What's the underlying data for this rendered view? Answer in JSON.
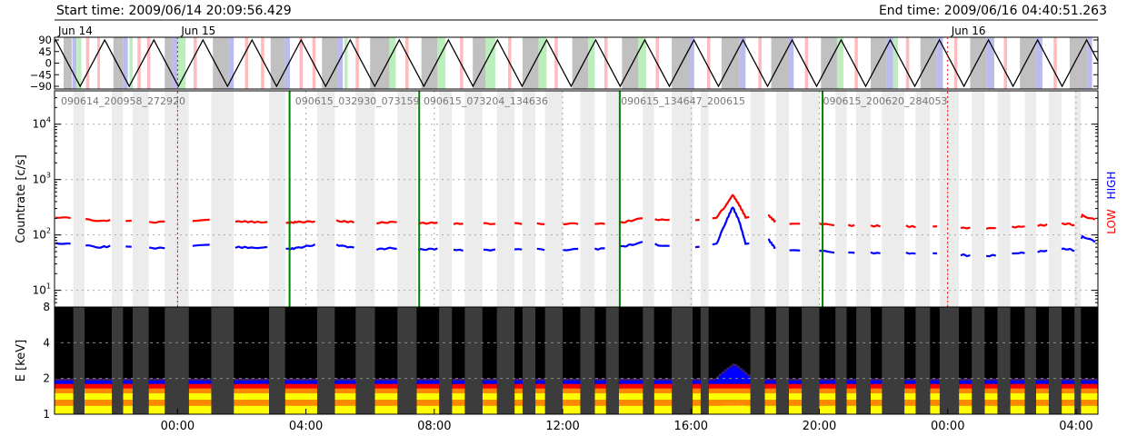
{
  "header": {
    "start_time": "Start time: 2009/06/14 20:09:56.429",
    "end_time": "End time: 2009/06/16 04:40:51.263"
  },
  "colors": {
    "low": "#ff0000",
    "high": "#0000ff",
    "marker": "#008000",
    "day_line": "#ff0000",
    "saa": "#c0c0c0",
    "gap_band": "#ececec",
    "dark_band": "#3c3c3c",
    "pink": "#ffbbbb",
    "lavender": "#bbbbee",
    "mint": "#bbeebb"
  },
  "chart_data": [
    {
      "type": "line",
      "panel": "orbit",
      "day_labels": [
        "Jun 14",
        "Jun 15",
        "Jun 16"
      ],
      "y_ticks": [
        "90",
        "45",
        "0",
        "−45",
        "−90"
      ],
      "ylim": [
        -90,
        90
      ],
      "x_unit": "hours since 2009/06/14 00:00",
      "xlim": [
        20.1656,
        52.6808
      ],
      "day_boundaries": [
        24,
        48
      ],
      "wave_period_h": 1.53,
      "wave_first_peak_h": 20.2,
      "grid": false
    },
    {
      "type": "line",
      "panel": "countrate",
      "ylabel": "Countrate [c/s]",
      "yscale": "log",
      "ylim": [
        5,
        40000
      ],
      "y_ticks": [
        {
          "base": "10",
          "exp": "1",
          "v": 10
        },
        {
          "base": "10",
          "exp": "2",
          "v": 100
        },
        {
          "base": "10",
          "exp": "3",
          "v": 1000
        },
        {
          "base": "10",
          "exp": "4",
          "v": 10000
        }
      ],
      "legend_low": "LOW",
      "legend_high": "HIGH",
      "legend_position": "right",
      "grid": true,
      "segment_labels": [
        {
          "text": "090614_200958_272920",
          "x": 20.25
        },
        {
          "text": "090615_032930_073159",
          "x": 27.55
        },
        {
          "text": "090615_073204_134636",
          "x": 31.55
        },
        {
          "text": "090615_134647_200615",
          "x": 37.7
        },
        {
          "text": "090615_200620_284053",
          "x": 44.0
        }
      ],
      "segment_boundaries": [
        27.49,
        31.53,
        37.78,
        44.1
      ],
      "series": [
        {
          "name": "LOW",
          "points": [
            [
              20.2,
              210
            ],
            [
              20.9,
              195
            ],
            [
              21.6,
              180
            ],
            [
              22.2,
              185
            ],
            [
              23.3,
              170
            ],
            [
              24.2,
              180
            ],
            [
              25.0,
              185
            ],
            [
              25.4,
              175
            ],
            [
              26.0,
              175
            ],
            [
              26.6,
              170
            ],
            [
              27.0,
              172
            ],
            [
              27.45,
              165
            ],
            [
              27.7,
              170
            ],
            [
              28.2,
              175
            ],
            [
              28.7,
              185
            ],
            [
              29.2,
              175
            ],
            [
              29.8,
              168
            ],
            [
              30.2,
              165
            ],
            [
              30.7,
              170
            ],
            [
              31.5,
              162
            ],
            [
              32.0,
              165
            ],
            [
              32.6,
              160
            ],
            [
              33.2,
              158
            ],
            [
              33.6,
              160
            ],
            [
              34.5,
              160
            ],
            [
              35.2,
              160
            ],
            [
              35.9,
              160
            ],
            [
              36.6,
              158
            ],
            [
              37.2,
              160
            ],
            [
              37.9,
              170
            ],
            [
              38.2,
              185
            ],
            [
              38.55,
              200
            ],
            [
              39.2,
              185
            ],
            [
              40.0,
              180
            ],
            [
              40.8,
              210
            ],
            [
              41.1,
              350
            ],
            [
              41.3,
              530
            ],
            [
              41.5,
              350
            ],
            [
              41.7,
              210
            ],
            [
              42.4,
              230
            ],
            [
              42.6,
              180
            ],
            [
              42.8,
              160
            ],
            [
              43.2,
              160
            ],
            [
              43.6,
              155
            ],
            [
              44.2,
              158
            ],
            [
              44.6,
              148
            ],
            [
              45.2,
              148
            ],
            [
              45.8,
              145
            ],
            [
              46.4,
              148
            ],
            [
              47.0,
              140
            ],
            [
              47.8,
              140
            ],
            [
              48.4,
              135
            ],
            [
              49.0,
              130
            ],
            [
              49.6,
              135
            ],
            [
              50.2,
              140
            ],
            [
              50.8,
              148
            ],
            [
              51.4,
              155
            ],
            [
              51.7,
              160
            ],
            [
              52.0,
              150
            ],
            [
              52.2,
              225
            ],
            [
              52.67,
              180
            ]
          ]
        },
        {
          "name": "HIGH",
          "points": [
            [
              20.2,
              72
            ],
            [
              20.9,
              66
            ],
            [
              21.6,
              60
            ],
            [
              22.2,
              65
            ],
            [
              23.3,
              57
            ],
            [
              24.2,
              62
            ],
            [
              25.0,
              65
            ],
            [
              25.4,
              60
            ],
            [
              26.0,
              60
            ],
            [
              26.6,
              58
            ],
            [
              27.0,
              60
            ],
            [
              27.45,
              55
            ],
            [
              27.7,
              58
            ],
            [
              28.2,
              65
            ],
            [
              28.7,
              72
            ],
            [
              29.2,
              62
            ],
            [
              29.8,
              57
            ],
            [
              30.2,
              55
            ],
            [
              30.7,
              58
            ],
            [
              31.5,
              54
            ],
            [
              32.0,
              56
            ],
            [
              32.6,
              54
            ],
            [
              33.2,
              52
            ],
            [
              33.6,
              54
            ],
            [
              34.5,
              54
            ],
            [
              35.2,
              55
            ],
            [
              35.9,
              54
            ],
            [
              36.6,
              55
            ],
            [
              37.2,
              56
            ],
            [
              37.9,
              62
            ],
            [
              38.2,
              68
            ],
            [
              38.55,
              74
            ],
            [
              39.2,
              62
            ],
            [
              40.0,
              60
            ],
            [
              40.8,
              70
            ],
            [
              41.1,
              180
            ],
            [
              41.3,
              320
            ],
            [
              41.5,
              180
            ],
            [
              41.7,
              70
            ],
            [
              42.4,
              85
            ],
            [
              42.6,
              60
            ],
            [
              42.8,
              52
            ],
            [
              43.2,
              52
            ],
            [
              43.6,
              50
            ],
            [
              44.2,
              52
            ],
            [
              44.6,
              48
            ],
            [
              45.2,
              48
            ],
            [
              45.8,
              47
            ],
            [
              46.4,
              48
            ],
            [
              47.0,
              46
            ],
            [
              47.8,
              45
            ],
            [
              48.4,
              44
            ],
            [
              49.0,
              40
            ],
            [
              49.6,
              44
            ],
            [
              50.2,
              47
            ],
            [
              50.8,
              50
            ],
            [
              51.4,
              54
            ],
            [
              51.7,
              56
            ],
            [
              52.0,
              52
            ],
            [
              52.2,
              95
            ],
            [
              52.67,
              72
            ]
          ]
        }
      ]
    },
    {
      "type": "heatmap",
      "panel": "spectrogram",
      "ylabel": "E [keV]",
      "yscale": "log",
      "ylim": [
        1,
        8
      ],
      "y_ticks": [
        "1",
        "2",
        "4",
        "8"
      ],
      "x_ticks": [
        "00:00",
        "04:00",
        "08:00",
        "12:00",
        "16:00",
        "20:00",
        "00:00",
        "04:00"
      ],
      "x_tick_values": [
        24,
        28,
        32,
        36,
        40,
        44,
        48,
        52
      ],
      "colorscale": [
        "#000000",
        "#3c1d6e",
        "#0000ff",
        "#ff0000",
        "#ff8800",
        "#ffff00",
        "#ffffcc"
      ],
      "energy_cutoff_keV": 2.0,
      "flare_peak_keV": 2.7,
      "flare_time_h": 41.3
    }
  ],
  "gaps": [
    [
      20.75,
      21.1
    ],
    [
      21.95,
      22.3
    ],
    [
      22.6,
      23.1
    ],
    [
      23.6,
      24.35
    ],
    [
      25.05,
      25.75
    ],
    [
      26.85,
      27.35
    ],
    [
      28.35,
      28.9
    ],
    [
      29.55,
      30.15
    ],
    [
      30.85,
      31.45
    ],
    [
      32.15,
      32.55
    ],
    [
      32.95,
      33.5
    ],
    [
      33.95,
      34.5
    ],
    [
      34.75,
      35.15
    ],
    [
      35.45,
      36.0
    ],
    [
      36.55,
      37.0
    ],
    [
      37.35,
      37.75
    ],
    [
      38.5,
      38.85
    ],
    [
      39.4,
      40.05
    ],
    [
      40.3,
      40.55
    ],
    [
      41.85,
      42.3
    ],
    [
      42.65,
      43.05
    ],
    [
      43.45,
      44.0
    ],
    [
      44.5,
      44.85
    ],
    [
      45.15,
      45.6
    ],
    [
      45.95,
      46.65
    ],
    [
      47.0,
      47.45
    ],
    [
      47.75,
      48.35
    ],
    [
      48.75,
      49.15
    ],
    [
      49.55,
      49.95
    ],
    [
      50.4,
      50.75
    ],
    [
      51.15,
      51.55
    ],
    [
      51.95,
      52.15
    ]
  ],
  "orbit_shading": [
    [
      20.45,
      20.7,
      "gray"
    ],
    [
      20.72,
      20.85,
      "lavender"
    ],
    [
      20.86,
      21.0,
      "mint"
    ],
    [
      21.15,
      21.25,
      "pink"
    ],
    [
      21.5,
      21.58,
      "pink"
    ],
    [
      22.0,
      22.3,
      "gray"
    ],
    [
      22.3,
      22.45,
      "lavender"
    ],
    [
      22.5,
      22.6,
      "mint"
    ],
    [
      22.75,
      22.85,
      "pink"
    ],
    [
      23.05,
      23.15,
      "pink"
    ],
    [
      23.6,
      23.85,
      "gray"
    ],
    [
      23.85,
      24.0,
      "lavender"
    ],
    [
      24.0,
      24.25,
      "mint"
    ],
    [
      24.5,
      24.6,
      "pink"
    ],
    [
      25.1,
      25.6,
      "gray"
    ],
    [
      25.6,
      25.75,
      "lavender"
    ],
    [
      26.1,
      26.2,
      "pink"
    ],
    [
      26.6,
      26.7,
      "pink"
    ],
    [
      26.9,
      27.35,
      "gray"
    ],
    [
      27.35,
      27.5,
      "lavender"
    ],
    [
      27.8,
      27.9,
      "pink"
    ],
    [
      28.2,
      28.3,
      "pink"
    ],
    [
      28.5,
      29.0,
      "gray"
    ],
    [
      29.0,
      29.15,
      "lavender"
    ],
    [
      29.2,
      29.3,
      "mint"
    ],
    [
      29.55,
      29.65,
      "pink"
    ],
    [
      30.0,
      30.6,
      "gray"
    ],
    [
      30.6,
      30.8,
      "mint"
    ],
    [
      31.1,
      31.2,
      "pink"
    ],
    [
      31.6,
      32.1,
      "gray"
    ],
    [
      32.1,
      32.35,
      "mint"
    ],
    [
      32.8,
      32.9,
      "pink"
    ],
    [
      33.2,
      33.6,
      "gray"
    ],
    [
      33.6,
      33.9,
      "mint"
    ],
    [
      34.3,
      34.4,
      "pink"
    ],
    [
      34.75,
      35.25,
      "gray"
    ],
    [
      35.25,
      35.5,
      "mint"
    ],
    [
      35.75,
      35.85,
      "pink"
    ],
    [
      36.3,
      36.8,
      "gray"
    ],
    [
      36.8,
      37.0,
      "mint"
    ],
    [
      37.3,
      37.4,
      "pink"
    ],
    [
      37.85,
      38.35,
      "gray"
    ],
    [
      38.35,
      38.6,
      "mint"
    ],
    [
      38.9,
      39.0,
      "pink"
    ],
    [
      39.4,
      39.95,
      "gray"
    ],
    [
      39.95,
      40.1,
      "lavender"
    ],
    [
      40.5,
      40.6,
      "pink"
    ],
    [
      40.95,
      41.5,
      "gray"
    ],
    [
      41.5,
      41.7,
      "lavender"
    ],
    [
      42.1,
      42.2,
      "pink"
    ],
    [
      42.5,
      43.05,
      "gray"
    ],
    [
      43.05,
      43.2,
      "lavender"
    ],
    [
      43.55,
      43.65,
      "pink"
    ],
    [
      44.05,
      44.55,
      "gray"
    ],
    [
      44.55,
      44.75,
      "mint"
    ],
    [
      45.1,
      45.2,
      "pink"
    ],
    [
      45.6,
      46.1,
      "gray"
    ],
    [
      46.1,
      46.3,
      "lavender"
    ],
    [
      46.3,
      46.45,
      "mint"
    ],
    [
      46.7,
      46.8,
      "pink"
    ],
    [
      47.15,
      47.65,
      "gray"
    ],
    [
      47.65,
      47.85,
      "lavender"
    ],
    [
      48.2,
      48.3,
      "pink"
    ],
    [
      48.7,
      49.2,
      "gray"
    ],
    [
      49.2,
      49.45,
      "lavender"
    ],
    [
      49.75,
      49.85,
      "pink"
    ],
    [
      50.25,
      50.75,
      "gray"
    ],
    [
      50.75,
      50.95,
      "lavender"
    ],
    [
      51.3,
      51.4,
      "pink"
    ],
    [
      51.8,
      52.35,
      "gray"
    ],
    [
      52.35,
      52.5,
      "lavender"
    ]
  ]
}
